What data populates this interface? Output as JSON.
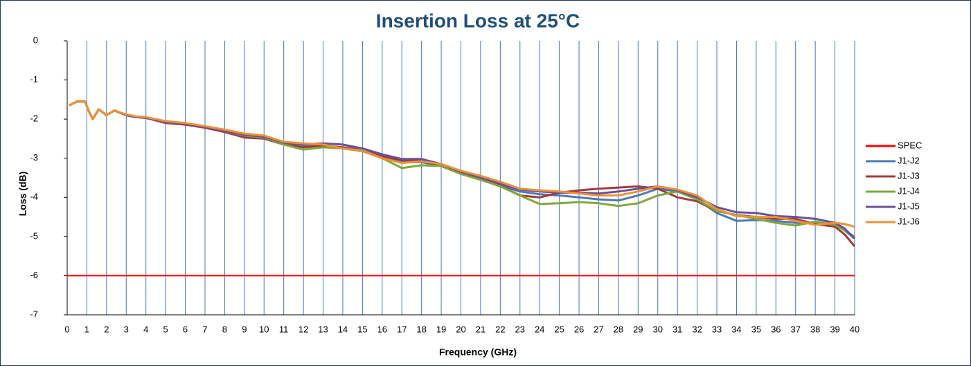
{
  "chart_data": {
    "type": "line",
    "title": "Insertion Loss at 25°C",
    "xlabel": "Frequency (GHz)",
    "ylabel": "Loss (dB)",
    "x": [
      0.1,
      0.5,
      0.9,
      1.1,
      1.3,
      1.6,
      2,
      2.4,
      3,
      3.5,
      4,
      5,
      6,
      7,
      8,
      9,
      10,
      11,
      12,
      13,
      14,
      15,
      16,
      17,
      18,
      19,
      20,
      21,
      22,
      23,
      24,
      25,
      26,
      27,
      28,
      29,
      30,
      31,
      32,
      33,
      34,
      35,
      36,
      37,
      38,
      39,
      39.5,
      40
    ],
    "series": [
      {
        "name": "SPEC",
        "color": "#ff0000",
        "x": [
          0,
          40
        ],
        "values": [
          -6,
          -6
        ]
      },
      {
        "name": "J1-J2",
        "color": "#4a7ab5",
        "values": [
          -1.65,
          -1.55,
          -1.55,
          -1.8,
          -2.0,
          -1.75,
          -1.9,
          -1.78,
          -1.9,
          -1.95,
          -1.97,
          -2.08,
          -2.12,
          -2.2,
          -2.3,
          -2.42,
          -2.47,
          -2.6,
          -2.68,
          -2.68,
          -2.72,
          -2.78,
          -2.95,
          -3.1,
          -3.1,
          -3.2,
          -3.4,
          -3.55,
          -3.7,
          -3.85,
          -3.92,
          -3.95,
          -4.0,
          -4.05,
          -4.08,
          -3.95,
          -3.78,
          -3.85,
          -4.05,
          -4.4,
          -4.6,
          -4.58,
          -4.6,
          -4.65,
          -4.65,
          -4.7,
          -4.85,
          -5.05
        ]
      },
      {
        "name": "J1-J3",
        "color": "#a33b3b",
        "values": [
          -1.65,
          -1.55,
          -1.55,
          -1.8,
          -2.0,
          -1.75,
          -1.9,
          -1.78,
          -1.9,
          -1.95,
          -1.97,
          -2.1,
          -2.14,
          -2.22,
          -2.33,
          -2.47,
          -2.5,
          -2.65,
          -2.72,
          -2.68,
          -2.72,
          -2.8,
          -2.95,
          -3.05,
          -3.05,
          -3.2,
          -3.4,
          -3.55,
          -3.7,
          -3.95,
          -4.0,
          -3.88,
          -3.82,
          -3.78,
          -3.75,
          -3.72,
          -3.78,
          -4.0,
          -4.1,
          -4.35,
          -4.45,
          -4.5,
          -4.55,
          -4.55,
          -4.68,
          -4.75,
          -4.95,
          -5.25
        ]
      },
      {
        "name": "J1-J4",
        "color": "#7fa83a",
        "values": [
          -1.65,
          -1.55,
          -1.55,
          -1.8,
          -2.0,
          -1.75,
          -1.9,
          -1.78,
          -1.9,
          -1.95,
          -1.97,
          -2.08,
          -2.12,
          -2.2,
          -2.3,
          -2.42,
          -2.47,
          -2.65,
          -2.78,
          -2.72,
          -2.75,
          -2.82,
          -3.0,
          -3.25,
          -3.18,
          -3.2,
          -3.4,
          -3.55,
          -3.72,
          -3.95,
          -4.17,
          -4.15,
          -4.12,
          -4.15,
          -4.22,
          -4.15,
          -3.95,
          -3.85,
          -4.05,
          -4.35,
          -4.45,
          -4.55,
          -4.65,
          -4.72,
          -4.62,
          -4.7,
          -4.85,
          -5.0
        ]
      },
      {
        "name": "J1-J5",
        "color": "#6a4f9a",
        "values": [
          -1.65,
          -1.55,
          -1.55,
          -1.8,
          -2.0,
          -1.75,
          -1.9,
          -1.78,
          -1.9,
          -1.95,
          -1.97,
          -2.08,
          -2.12,
          -2.2,
          -2.3,
          -2.4,
          -2.45,
          -2.6,
          -2.65,
          -2.62,
          -2.65,
          -2.75,
          -2.9,
          -3.02,
          -3.02,
          -3.15,
          -3.35,
          -3.5,
          -3.65,
          -3.8,
          -3.85,
          -3.88,
          -3.88,
          -3.9,
          -3.85,
          -3.78,
          -3.72,
          -3.82,
          -4.0,
          -4.25,
          -4.38,
          -4.4,
          -4.48,
          -4.5,
          -4.55,
          -4.65,
          -4.8,
          -5.05
        ]
      },
      {
        "name": "J1-J6",
        "color": "#ee9034",
        "values": [
          -1.65,
          -1.55,
          -1.55,
          -1.8,
          -2.0,
          -1.75,
          -1.9,
          -1.78,
          -1.88,
          -1.93,
          -1.95,
          -2.05,
          -2.1,
          -2.18,
          -2.27,
          -2.37,
          -2.42,
          -2.58,
          -2.62,
          -2.65,
          -2.75,
          -2.8,
          -3.0,
          -3.12,
          -3.08,
          -3.15,
          -3.32,
          -3.45,
          -3.6,
          -3.78,
          -3.82,
          -3.85,
          -3.9,
          -3.95,
          -3.95,
          -3.85,
          -3.72,
          -3.8,
          -3.95,
          -4.3,
          -4.48,
          -4.5,
          -4.5,
          -4.6,
          -4.7,
          -4.65,
          -4.68,
          -4.75
        ]
      }
    ],
    "xlim": [
      0,
      40
    ],
    "ylim": [
      -7,
      0
    ],
    "xticks": [
      0,
      1,
      2,
      3,
      4,
      5,
      6,
      7,
      8,
      9,
      10,
      11,
      12,
      13,
      14,
      15,
      16,
      17,
      18,
      19,
      20,
      21,
      22,
      23,
      24,
      25,
      26,
      27,
      28,
      29,
      30,
      31,
      32,
      33,
      34,
      35,
      36,
      37,
      38,
      39,
      40
    ],
    "yticks": [
      0,
      -1,
      -2,
      -3,
      -4,
      -5,
      -6,
      -7
    ],
    "xgrid": true,
    "legend": "right"
  }
}
